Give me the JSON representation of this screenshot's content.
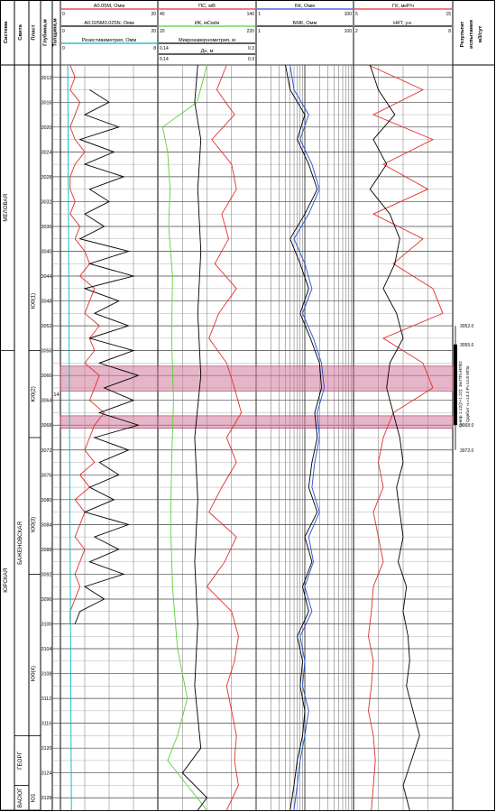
{
  "chart_data": {
    "type": "line",
    "title": "",
    "header_columns": [
      "Система",
      "Свита",
      "Пласт",
      "Глубина,м",
      "Толщина,м"
    ],
    "result_column": [
      "Результат",
      "испытания",
      "м3/сут"
    ],
    "depth_range": [
      3010,
      3130
    ],
    "depth_ticks": [
      3012,
      3016,
      3020,
      3024,
      3028,
      3032,
      3036,
      3040,
      3044,
      3048,
      3052,
      3056,
      3060,
      3064,
      3068,
      3072,
      3076,
      3080,
      3084,
      3088,
      3092,
      3096,
      3100,
      3104,
      3108,
      3112,
      3116,
      3120,
      3124,
      3128
    ],
    "tracks": [
      {
        "id": "resistivity",
        "header_curves": [
          {
            "name": "A0.05M, Омм",
            "color": "#e0302a",
            "min": 0,
            "max": 20
          },
          {
            "name": "A0.025M0.025N, Омм",
            "color": "#000000",
            "min": 0,
            "max": 20
          },
          {
            "name": "Резистивиметрия, Омм",
            "color": "#00b7c2",
            "min": 0,
            "max": 8
          }
        ],
        "series": [
          {
            "name": "A0.05M, Омм",
            "color": "#e0302a",
            "min": 0,
            "max": 20,
            "depths": [
              3010,
              3012,
              3014,
              3016,
              3018,
              3020,
              3022,
              3024,
              3026,
              3028,
              3030,
              3032,
              3034,
              3036,
              3038,
              3040,
              3042,
              3044,
              3046,
              3048,
              3050,
              3052,
              3054,
              3056,
              3058,
              3060,
              3062,
              3064,
              3066,
              3068,
              3070,
              3072,
              3074,
              3076,
              3078,
              3080,
              3082,
              3084,
              3086,
              3088,
              3090,
              3092,
              3094,
              3096,
              3098,
              3100
            ],
            "values": [
              2,
              3,
              2,
              4,
              3,
              2,
              3,
              5,
              3,
              2,
              2,
              3,
              2,
              4,
              3,
              5,
              6,
              4,
              7,
              6,
              5,
              8,
              6,
              7,
              5,
              8,
              7,
              6,
              9,
              7,
              6,
              5,
              7,
              4,
              6,
              3,
              5,
              4,
              3,
              5,
              4,
              3,
              4,
              3,
              2,
              2
            ]
          },
          {
            "name": "A0.025M0.025N, Омм",
            "color": "#000000",
            "min": 0,
            "max": 20,
            "depths": [
              3014,
              3016,
              3018,
              3020,
              3022,
              3024,
              3026,
              3028,
              3030,
              3032,
              3034,
              3036,
              3038,
              3040,
              3042,
              3044,
              3046,
              3048,
              3050,
              3052,
              3054,
              3056,
              3058,
              3060,
              3062,
              3064,
              3066,
              3068,
              3070,
              3072,
              3074,
              3076,
              3078,
              3080,
              3082,
              3084,
              3086,
              3088,
              3090,
              3092,
              3094,
              3096,
              3098,
              3100
            ],
            "values": [
              6,
              10,
              5,
              12,
              4,
              11,
              5,
              13,
              6,
              10,
              5,
              9,
              4,
              14,
              6,
              15,
              5,
              12,
              7,
              14,
              6,
              15,
              8,
              16,
              9,
              15,
              8,
              16,
              7,
              14,
              8,
              12,
              6,
              11,
              5,
              14,
              7,
              12,
              6,
              13,
              5,
              9,
              4,
              3
            ]
          },
          {
            "name": "Резистивиметрия, Омм",
            "color": "#00b7c2",
            "min": 0,
            "max": 8,
            "depths": [
              3010,
              3130
            ],
            "values": [
              0.6,
              0.9
            ]
          }
        ]
      },
      {
        "id": "sp_induction",
        "header_curves": [
          {
            "name": "ПС, мВ",
            "color": "#e0302a",
            "min": 40,
            "max": 140
          },
          {
            "name": "ИК, мСм/м",
            "color": "#5bd13b",
            "min": 20,
            "max": 220
          },
          {
            "name": "Микрокавернометрия, м",
            "color": "#000000",
            "min": 0.14,
            "max": 0.3
          },
          {
            "name": "Дн, м",
            "color": "#000000",
            "min": 0.14,
            "max": 0.3
          }
        ],
        "series": [
          {
            "name": "ПС, мВ",
            "color": "#e0302a",
            "min": 40,
            "max": 140,
            "depths": [
              3010,
              3014,
              3018,
              3022,
              3026,
              3030,
              3034,
              3038,
              3042,
              3046,
              3050,
              3054,
              3058,
              3062,
              3066,
              3070,
              3074,
              3078,
              3082,
              3086,
              3090,
              3094,
              3098,
              3102,
              3106,
              3110,
              3114,
              3118,
              3122,
              3126,
              3130
            ],
            "values": [
              110,
              100,
              118,
              95,
              115,
              120,
              105,
              112,
              98,
              120,
              102,
              92,
              110,
              118,
              125,
              110,
              120,
              105,
              92,
              120,
              108,
              90,
              115,
              122,
              118,
              110,
              115,
              120,
              118,
              122,
              110
            ]
          },
          {
            "name": "ИК, мСм/м",
            "color": "#5bd13b",
            "min": 20,
            "max": 220,
            "depths": [
              3010,
              3016,
              3020,
              3024,
              3030,
              3036,
              3044,
              3054,
              3064,
              3074,
              3084,
              3094,
              3104,
              3112,
              3118,
              3122,
              3126,
              3130
            ],
            "values": [
              120,
              100,
              30,
              40,
              45,
              42,
              50,
              48,
              52,
              48,
              46,
              50,
              60,
              80,
              60,
              40,
              80,
              120
            ]
          },
          {
            "name": "Микрокавернометрия, м",
            "color": "#000000",
            "min": 0.14,
            "max": 0.3,
            "depths": [
              3010,
              3016,
              3022,
              3030,
              3040,
              3050,
              3060,
              3070,
              3080,
              3090,
              3100,
              3110,
              3120,
              3124,
              3128,
              3130
            ],
            "values": [
              0.205,
              0.2,
              0.21,
              0.205,
              0.21,
              0.205,
              0.21,
              0.2,
              0.205,
              0.2,
              0.205,
              0.2,
              0.21,
              0.18,
              0.22,
              0.205
            ]
          }
        ]
      },
      {
        "id": "laterolog",
        "header_curves": [
          {
            "name": "БК, Омм",
            "color": "#1e50d8",
            "min": 1,
            "max": 100,
            "scale": "log"
          },
          {
            "name": "БМК, Омм",
            "color": "#000000",
            "min": 1,
            "max": 100,
            "scale": "log"
          }
        ],
        "series": [
          {
            "name": "БК, Омм",
            "color": "#1e50d8",
            "min": 1,
            "max": 100,
            "scale": "log",
            "depths": [
              3010,
              3014,
              3018,
              3022,
              3026,
              3030,
              3034,
              3038,
              3042,
              3046,
              3050,
              3054,
              3058,
              3062,
              3066,
              3070,
              3074,
              3078,
              3082,
              3086,
              3090,
              3094,
              3098,
              3102,
              3106,
              3110,
              3114,
              3118,
              3122,
              3126,
              3130
            ],
            "values": [
              5,
              6,
              12,
              8,
              14,
              20,
              12,
              6,
              10,
              14,
              9,
              15,
              22,
              25,
              18,
              20,
              16,
              14,
              20,
              12,
              15,
              10,
              14,
              8,
              10,
              9,
              12,
              10,
              8,
              7,
              6
            ]
          },
          {
            "name": "БМК, Омм",
            "color": "#000000",
            "min": 1,
            "max": 100,
            "scale": "log",
            "depths": [
              3010,
              3014,
              3018,
              3022,
              3026,
              3030,
              3034,
              3038,
              3042,
              3046,
              3050,
              3054,
              3058,
              3062,
              3066,
              3070,
              3074,
              3078,
              3082,
              3086,
              3090,
              3094,
              3098,
              3102,
              3106,
              3110,
              3114,
              3118,
              3122,
              3126,
              3130
            ],
            "values": [
              4,
              5,
              10,
              7,
              12,
              18,
              10,
              5,
              8,
              12,
              8,
              13,
              20,
              22,
              16,
              18,
              14,
              12,
              18,
              10,
              14,
              9,
              12,
              7,
              9,
              8,
              10,
              9,
              7,
              6,
              5
            ]
          }
        ]
      },
      {
        "id": "radioactivity",
        "header_curves": [
          {
            "name": "ГК, мкР/ч",
            "color": "#e0302a",
            "min": 5,
            "max": 15
          },
          {
            "name": "НКТ, у.е.",
            "color": "#000000",
            "min": 2,
            "max": 8
          }
        ],
        "series": [
          {
            "name": "ГК, мкР/ч",
            "color": "#e0302a",
            "min": 5,
            "max": 15,
            "depths": [
              3010,
              3014,
              3018,
              3022,
              3026,
              3030,
              3034,
              3038,
              3042,
              3046,
              3050,
              3054,
              3058,
              3062,
              3066,
              3070,
              3074,
              3078,
              3082,
              3086,
              3090,
              3094,
              3098,
              3102,
              3106,
              3110,
              3114,
              3118,
              3122,
              3126,
              3130
            ],
            "values": [
              6.5,
              12,
              7,
              13,
              8,
              12.5,
              7,
              12,
              9,
              13,
              14,
              8,
              12,
              13,
              9,
              8,
              7.5,
              8,
              7,
              7.5,
              8,
              7,
              6.8,
              6.5,
              7,
              6.8,
              6.5,
              7,
              7.2,
              7,
              6.8
            ]
          },
          {
            "name": "НКТ, у.е.",
            "color": "#000000",
            "min": 2,
            "max": 8,
            "depths": [
              3010,
              3014,
              3018,
              3022,
              3026,
              3030,
              3034,
              3038,
              3042,
              3046,
              3050,
              3054,
              3058,
              3062,
              3066,
              3070,
              3074,
              3078,
              3082,
              3086,
              3090,
              3094,
              3098,
              3102,
              3106,
              3110,
              3114,
              3118,
              3122,
              3126,
              3130
            ],
            "values": [
              3,
              3.5,
              4.5,
              3.2,
              4,
              3,
              4.2,
              4.8,
              4.5,
              3.8,
              4.6,
              5,
              4.2,
              4,
              4.4,
              4.8,
              5,
              4.6,
              4.8,
              5,
              4.7,
              5.2,
              5,
              5.3,
              5.4,
              5.2,
              5.6,
              6,
              5.5,
              5,
              5.4
            ]
          }
        ]
      }
    ],
    "stratigraphy": {
      "systems": [
        {
          "name": "МЕЛОВАЯ",
          "top": 3010,
          "bottom": 3056
        },
        {
          "name": "ЮРСКАЯ",
          "top": 3056,
          "bottom": 3130
        }
      ],
      "suites": [
        {
          "name": "БАЖЕНОВСКАЯ",
          "top": 3056,
          "bottom": 3118
        },
        {
          "name": "ГЕОРГ",
          "top": 3118,
          "bottom": 3126
        },
        {
          "name": "ВАСЮГ",
          "top": 3126,
          "bottom": 3130
        }
      ],
      "layers": [
        {
          "name": "Ю0(1)",
          "top": 3040,
          "bottom": 3056
        },
        {
          "name": "Ю0(2)",
          "top": 3056,
          "bottom": 3070
        },
        {
          "name": "Ю0(3)",
          "top": 3076,
          "bottom": 3092
        },
        {
          "name": "Ю0(4)",
          "top": 3098,
          "bottom": 3118
        },
        {
          "name": "Ю1",
          "top": 3126,
          "bottom": 3130
        }
      ]
    },
    "thickness_label": "14",
    "highlight_intervals": [
      [
        3058.5,
        3062.5
      ],
      [
        3066.5,
        3068.5
      ]
    ],
    "test_interval": {
      "top": 3052.0,
      "bottom": 3072.0,
      "perforation_top": 3055.0,
      "perforation_bottom": 3068.0,
      "labels": [
        "3052.0",
        "3055.0",
        "3068.0",
        "3072.0"
      ],
      "note_lines": [
        "Qнеф 1.12(2+1.22): 3м ПП=НГВ2",
        "Qдебит н.=13.3  Р=14.8 МПа"
      ]
    }
  }
}
